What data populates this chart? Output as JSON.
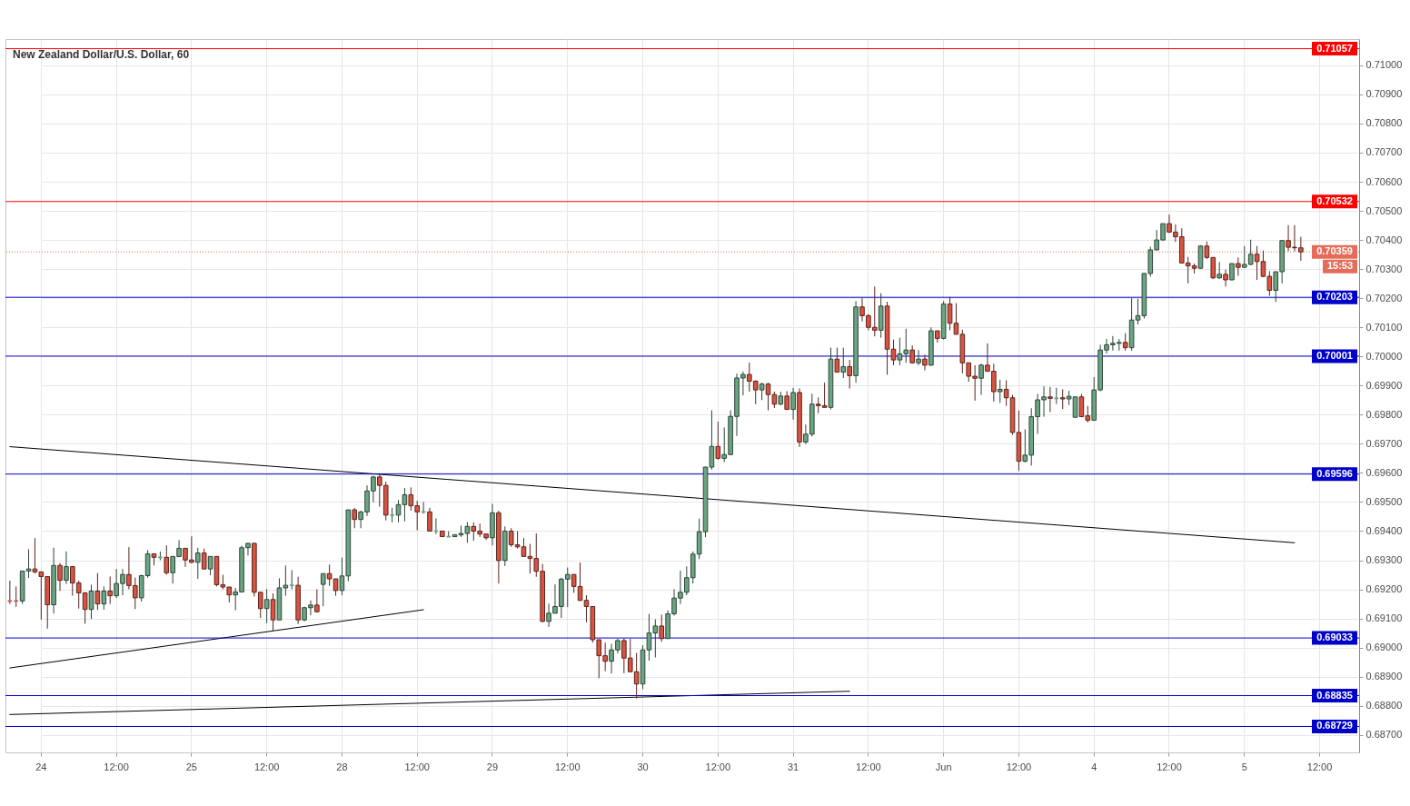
{
  "chart_data": {
    "type": "candlestick",
    "title": "New Zealand Dollar/U.S. Dollar, 60",
    "categories": [
      null,
      null,
      null,
      null,
      null,
      "24",
      null,
      null,
      null,
      null,
      null,
      null,
      null,
      null,
      null,
      null,
      null,
      "12:00",
      null,
      null,
      null,
      null,
      null,
      null,
      null,
      null,
      null,
      null,
      null,
      "25",
      null,
      null,
      null,
      null,
      null,
      null,
      null,
      null,
      null,
      null,
      null,
      "12:00",
      null,
      null,
      null,
      null,
      null,
      null,
      null,
      null,
      null,
      null,
      null,
      "28",
      null,
      null,
      null,
      null,
      null,
      null,
      null,
      null,
      null,
      null,
      null,
      "12:00",
      null,
      null,
      null,
      null,
      null,
      null,
      null,
      null,
      null,
      null,
      null,
      "29",
      null,
      null,
      null,
      null,
      null,
      null,
      null,
      null,
      null,
      null,
      null,
      "12:00",
      null,
      null,
      null,
      null,
      null,
      null,
      null,
      null,
      null,
      null,
      null,
      "30",
      null,
      null,
      null,
      null,
      null,
      null,
      null,
      null,
      null,
      null,
      null,
      "12:00",
      null,
      null,
      null,
      null,
      null,
      null,
      null,
      null,
      null,
      null,
      null,
      "31",
      null,
      null,
      null,
      null,
      null,
      null,
      null,
      null,
      null,
      null,
      null,
      "12:00",
      null,
      null,
      null,
      null,
      null,
      null,
      null,
      null,
      null,
      null,
      null,
      "Jun",
      null,
      null,
      null,
      null,
      null,
      null,
      null,
      null,
      null,
      null,
      null,
      "12:00",
      null,
      null,
      null,
      null,
      null,
      null,
      null,
      null,
      null,
      null,
      null,
      "4",
      null,
      null,
      null,
      null,
      null,
      null,
      null,
      null,
      null,
      null,
      null,
      "12:00",
      null,
      null,
      null,
      null,
      null,
      null,
      null,
      null,
      null,
      null,
      null,
      "5",
      null,
      null,
      null,
      null,
      null,
      null,
      null,
      null,
      null,
      null,
      null,
      "12:00"
    ],
    "ohlc": [
      [
        0.6916,
        0.6923,
        0.6915,
        0.6916
      ],
      [
        0.6916,
        0.6921,
        0.6914,
        0.6916
      ],
      [
        0.6916,
        0.69263,
        0.6915,
        0.69263
      ],
      [
        0.69263,
        0.69338,
        0.69239,
        0.6927
      ],
      [
        0.6927,
        0.69376,
        0.69254,
        0.6926
      ],
      [
        0.6926,
        0.6926,
        0.69096,
        0.69244
      ],
      [
        0.69244,
        0.69244,
        0.69065,
        0.69147
      ],
      [
        0.69147,
        0.69343,
        0.69117,
        0.69282
      ],
      [
        0.69282,
        0.6929,
        0.69195,
        0.69231
      ],
      [
        0.69231,
        0.6933,
        0.69218,
        0.69278
      ],
      [
        0.69278,
        0.6928,
        0.69178,
        0.69222
      ],
      [
        0.69222,
        0.6923,
        0.69134,
        0.69188
      ],
      [
        0.69188,
        0.6919,
        0.69082,
        0.69131
      ],
      [
        0.69131,
        0.69216,
        0.69098,
        0.69194
      ],
      [
        0.69194,
        0.69256,
        0.69129,
        0.6915
      ],
      [
        0.6915,
        0.6921,
        0.6913,
        0.69194
      ],
      [
        0.69194,
        0.69244,
        0.6915,
        0.69178
      ],
      [
        0.69178,
        0.6927,
        0.6917,
        0.6922
      ],
      [
        0.6922,
        0.6927,
        0.6918,
        0.69251
      ],
      [
        0.69251,
        0.69345,
        0.692,
        0.69213
      ],
      [
        0.69213,
        0.6924,
        0.69132,
        0.69171
      ],
      [
        0.69171,
        0.6925,
        0.69158,
        0.69247
      ],
      [
        0.69247,
        0.69335,
        0.6924,
        0.69322
      ],
      [
        0.69322,
        0.69322,
        0.69282,
        0.6931
      ],
      [
        0.6931,
        0.6933,
        0.693,
        0.6931
      ],
      [
        0.6931,
        0.69351,
        0.6925,
        0.69257
      ],
      [
        0.69257,
        0.69313,
        0.6922,
        0.69313
      ],
      [
        0.69313,
        0.69369,
        0.6931,
        0.69341
      ],
      [
        0.69341,
        0.69341,
        0.69277,
        0.69301
      ],
      [
        0.69301,
        0.69382,
        0.6929,
        0.69293
      ],
      [
        0.69293,
        0.69343,
        0.69236,
        0.69325
      ],
      [
        0.69325,
        0.6934,
        0.6927,
        0.6927
      ],
      [
        0.6927,
        0.69313,
        0.69249,
        0.69313
      ],
      [
        0.69313,
        0.69313,
        0.6921,
        0.69216
      ],
      [
        0.69216,
        0.6925,
        0.692,
        0.69208
      ],
      [
        0.69208,
        0.69208,
        0.69155,
        0.69181
      ],
      [
        0.69181,
        0.69205,
        0.69128,
        0.69191
      ],
      [
        0.69191,
        0.6935,
        0.6919,
        0.69343
      ],
      [
        0.69343,
        0.6936,
        0.69316,
        0.69358
      ],
      [
        0.69358,
        0.6936,
        0.69175,
        0.6919
      ],
      [
        0.6919,
        0.6919,
        0.69102,
        0.69134
      ],
      [
        0.69134,
        0.69201,
        0.69084,
        0.69165
      ],
      [
        0.69165,
        0.69186,
        0.69057,
        0.69095
      ],
      [
        0.69095,
        0.69238,
        0.69095,
        0.69205
      ],
      [
        0.69205,
        0.69282,
        0.69178,
        0.69214
      ],
      [
        0.69214,
        0.69266,
        0.692,
        0.69214
      ],
      [
        0.69214,
        0.69243,
        0.69081,
        0.69095
      ],
      [
        0.69095,
        0.6914,
        0.6909,
        0.69137
      ],
      [
        0.69137,
        0.69162,
        0.69111,
        0.69146
      ],
      [
        0.69146,
        0.692,
        0.6912,
        0.69123
      ],
      [
        0.69217,
        0.69254,
        0.69142,
        0.69254
      ],
      [
        0.69254,
        0.69285,
        0.69212,
        0.69236
      ],
      [
        0.69236,
        0.69236,
        0.69178,
        0.69196
      ],
      [
        0.69196,
        0.69309,
        0.6918,
        0.69246
      ],
      [
        0.69246,
        0.69473,
        0.69228,
        0.69473
      ],
      [
        0.69473,
        0.6948,
        0.6941,
        0.6944
      ],
      [
        0.6944,
        0.6947,
        0.6941,
        0.69466
      ],
      [
        0.69466,
        0.69557,
        0.69452,
        0.69538
      ],
      [
        0.69538,
        0.6959,
        0.69499,
        0.69586
      ],
      [
        0.69586,
        0.69595,
        0.69484,
        0.69557
      ],
      [
        0.69557,
        0.6957,
        0.69437,
        0.69455
      ],
      [
        0.69455,
        0.6948,
        0.6943,
        0.69455
      ],
      [
        0.69455,
        0.69507,
        0.6943,
        0.69491
      ],
      [
        0.69491,
        0.69548,
        0.69433,
        0.69525
      ],
      [
        0.69525,
        0.6955,
        0.6947,
        0.69487
      ],
      [
        0.69487,
        0.69504,
        0.69403,
        0.69466
      ],
      [
        0.69466,
        0.695,
        0.6946,
        0.69466
      ],
      [
        0.69466,
        0.6948,
        0.694,
        0.694
      ],
      [
        0.694,
        0.69444,
        0.6939,
        0.694
      ],
      [
        0.694,
        0.694,
        0.6938,
        0.69381
      ],
      [
        0.69381,
        0.694,
        0.6938,
        0.69381
      ],
      [
        0.69381,
        0.6939,
        0.6938,
        0.69387
      ],
      [
        0.69387,
        0.69419,
        0.6938,
        0.69392
      ],
      [
        0.69392,
        0.69431,
        0.6936,
        0.69416
      ],
      [
        0.69416,
        0.6943,
        0.69367,
        0.694
      ],
      [
        0.694,
        0.69426,
        0.6938,
        0.6939
      ],
      [
        0.6939,
        0.6939,
        0.6937,
        0.69377
      ],
      [
        0.69377,
        0.69494,
        0.69351,
        0.69463
      ],
      [
        0.69463,
        0.6947,
        0.6922,
        0.69299
      ],
      [
        0.69299,
        0.69416,
        0.6928,
        0.694
      ],
      [
        0.694,
        0.6941,
        0.69346,
        0.69353
      ],
      [
        0.69353,
        0.694,
        0.6934,
        0.69346
      ],
      [
        0.69346,
        0.69376,
        0.69313,
        0.69313
      ],
      [
        0.69313,
        0.69356,
        0.69254,
        0.69306
      ],
      [
        0.69306,
        0.69392,
        0.69243,
        0.69262
      ],
      [
        0.69262,
        0.69287,
        0.69087,
        0.6909
      ],
      [
        0.6909,
        0.69151,
        0.69071,
        0.69118
      ],
      [
        0.69118,
        0.69217,
        0.69118,
        0.69141
      ],
      [
        0.69141,
        0.6924,
        0.69102,
        0.69235
      ],
      [
        0.69235,
        0.69275,
        0.69139,
        0.69251
      ],
      [
        0.69251,
        0.69251,
        0.69188,
        0.6921
      ],
      [
        0.6921,
        0.69292,
        0.6916,
        0.69162
      ],
      [
        0.69162,
        0.6918,
        0.69087,
        0.69141
      ],
      [
        0.69141,
        0.69141,
        0.69017,
        0.69027
      ],
      [
        0.69027,
        0.69027,
        0.68895,
        0.68972
      ],
      [
        0.68972,
        0.69017,
        0.68919,
        0.68953
      ],
      [
        0.68953,
        0.69013,
        0.68911,
        0.68992
      ],
      [
        0.68992,
        0.6903,
        0.6898,
        0.69024
      ],
      [
        0.69024,
        0.69032,
        0.68912,
        0.68964
      ],
      [
        0.68964,
        0.6903,
        0.68917,
        0.68917
      ],
      [
        0.68917,
        0.68982,
        0.68825,
        0.68875
      ],
      [
        0.68875,
        0.69008,
        0.68857,
        0.68992
      ],
      [
        0.68992,
        0.69116,
        0.68955,
        0.6905
      ],
      [
        0.6905,
        0.69097,
        0.68966,
        0.69074
      ],
      [
        0.69074,
        0.69113,
        0.6902,
        0.69031
      ],
      [
        0.69031,
        0.69128,
        0.6903,
        0.69116
      ],
      [
        0.69116,
        0.692,
        0.6911,
        0.6917
      ],
      [
        0.6917,
        0.69264,
        0.6915,
        0.6919
      ],
      [
        0.6919,
        0.69279,
        0.6918,
        0.6924
      ],
      [
        0.6924,
        0.6933,
        0.6922,
        0.69321
      ],
      [
        0.69321,
        0.69443,
        0.69304,
        0.69398
      ],
      [
        0.69398,
        0.6962,
        0.69379,
        0.6962
      ],
      [
        0.6962,
        0.69815,
        0.69611,
        0.69691
      ],
      [
        0.69691,
        0.69776,
        0.69645,
        0.6965
      ],
      [
        0.6965,
        0.69756,
        0.69637,
        0.69663
      ],
      [
        0.69663,
        0.69815,
        0.69661,
        0.69794
      ],
      [
        0.69794,
        0.69941,
        0.69727,
        0.69926
      ],
      [
        0.69926,
        0.69948,
        0.69866,
        0.69938
      ],
      [
        0.69938,
        0.69979,
        0.69879,
        0.69915
      ],
      [
        0.69915,
        0.69918,
        0.69836,
        0.69885
      ],
      [
        0.69885,
        0.6991,
        0.6985,
        0.69905
      ],
      [
        0.69905,
        0.6991,
        0.69815,
        0.69869
      ],
      [
        0.69869,
        0.69879,
        0.69823,
        0.69836
      ],
      [
        0.69836,
        0.69879,
        0.69833,
        0.69864
      ],
      [
        0.69864,
        0.69881,
        0.69818,
        0.69818
      ],
      [
        0.69818,
        0.69892,
        0.69783,
        0.69876
      ],
      [
        0.69876,
        0.6989,
        0.69689,
        0.69706
      ],
      [
        0.69706,
        0.69766,
        0.69699,
        0.69733
      ],
      [
        0.69733,
        0.69872,
        0.69725,
        0.69836
      ],
      [
        0.69836,
        0.69859,
        0.69805,
        0.69831
      ],
      [
        0.69831,
        0.6991,
        0.69825,
        0.69825
      ],
      [
        0.69825,
        0.7003,
        0.69818,
        0.69991
      ],
      [
        0.69991,
        0.7003,
        0.69946,
        0.69946
      ],
      [
        0.69946,
        0.7003,
        0.69926,
        0.69965
      ],
      [
        0.69965,
        0.69988,
        0.6989,
        0.69934
      ],
      [
        0.69934,
        0.7019,
        0.6991,
        0.7017
      ],
      [
        0.7017,
        0.702,
        0.7012,
        0.7014
      ],
      [
        0.7014,
        0.70145,
        0.7009,
        0.701
      ],
      [
        0.701,
        0.7024,
        0.70069,
        0.7009
      ],
      [
        0.7009,
        0.70217,
        0.70064,
        0.70173
      ],
      [
        0.70173,
        0.70188,
        0.69937,
        0.70025
      ],
      [
        0.70025,
        0.70058,
        0.6997,
        0.69988
      ],
      [
        0.69988,
        0.70064,
        0.6997,
        0.70009
      ],
      [
        0.70009,
        0.70095,
        0.69978,
        0.70022
      ],
      [
        0.70022,
        0.70038,
        0.69975,
        0.69978
      ],
      [
        0.69978,
        0.70022,
        0.6997,
        0.69991
      ],
      [
        0.69991,
        0.70006,
        0.69952,
        0.6997
      ],
      [
        0.6997,
        0.701,
        0.69968,
        0.70088
      ],
      [
        0.70088,
        0.70088,
        0.70048,
        0.70062
      ],
      [
        0.70062,
        0.7019,
        0.70058,
        0.7018
      ],
      [
        0.7018,
        0.70204,
        0.7009,
        0.70114
      ],
      [
        0.70114,
        0.70183,
        0.70076,
        0.70076
      ],
      [
        0.70076,
        0.70092,
        0.69942,
        0.69978
      ],
      [
        0.69978,
        0.69978,
        0.69913,
        0.69932
      ],
      [
        0.69932,
        0.6997,
        0.69848,
        0.69925
      ],
      [
        0.69925,
        0.69975,
        0.69868,
        0.6997
      ],
      [
        0.6997,
        0.70045,
        0.69949,
        0.69949
      ],
      [
        0.69949,
        0.69975,
        0.69845,
        0.69879
      ],
      [
        0.69879,
        0.6992,
        0.6984,
        0.69887
      ],
      [
        0.69887,
        0.69918,
        0.6983,
        0.69858
      ],
      [
        0.69858,
        0.69868,
        0.69731,
        0.69739
      ],
      [
        0.69739,
        0.69814,
        0.69607,
        0.6964
      ],
      [
        0.6964,
        0.6975,
        0.69636,
        0.69661
      ],
      [
        0.69661,
        0.69822,
        0.69625,
        0.69793
      ],
      [
        0.69793,
        0.69871,
        0.69734,
        0.69851
      ],
      [
        0.69851,
        0.69897,
        0.69793,
        0.69861
      ],
      [
        0.69861,
        0.69895,
        0.69809,
        0.69856
      ],
      [
        0.69856,
        0.69892,
        0.69837,
        0.69856
      ],
      [
        0.69858,
        0.69887,
        0.69819,
        0.69854
      ],
      [
        0.69854,
        0.69882,
        0.69833,
        0.69863
      ],
      [
        0.69791,
        0.69861,
        0.69791,
        0.69861
      ],
      [
        0.69861,
        0.69871,
        0.69793,
        0.69793
      ],
      [
        0.69796,
        0.6983,
        0.69773,
        0.69781
      ],
      [
        0.69781,
        0.69929,
        0.69781,
        0.69885
      ],
      [
        0.69885,
        0.7004,
        0.6988,
        0.70022
      ],
      [
        0.70022,
        0.7006,
        0.7001,
        0.7004
      ],
      [
        0.7004,
        0.7007,
        0.7002,
        0.70045
      ],
      [
        0.70045,
        0.7006,
        0.7002,
        0.70048
      ],
      [
        0.70048,
        0.7008,
        0.7002,
        0.7003
      ],
      [
        0.7003,
        0.702,
        0.7002,
        0.70125
      ],
      [
        0.70125,
        0.70198,
        0.7011,
        0.7014
      ],
      [
        0.7014,
        0.70285,
        0.7013,
        0.70285
      ],
      [
        0.70285,
        0.70377,
        0.70274,
        0.70366
      ],
      [
        0.70366,
        0.70435,
        0.70364,
        0.704
      ],
      [
        0.704,
        0.70456,
        0.70398,
        0.70456
      ],
      [
        0.70456,
        0.70487,
        0.70424,
        0.70427
      ],
      [
        0.70427,
        0.70453,
        0.70393,
        0.70411
      ],
      [
        0.70411,
        0.7044,
        0.70319,
        0.70321
      ],
      [
        0.70321,
        0.70342,
        0.70251,
        0.70311
      ],
      [
        0.70311,
        0.70319,
        0.70285,
        0.70303
      ],
      [
        0.70303,
        0.70382,
        0.70301,
        0.70379
      ],
      [
        0.70379,
        0.70395,
        0.70335,
        0.7034
      ],
      [
        0.7034,
        0.7034,
        0.70266,
        0.7027
      ],
      [
        0.7027,
        0.70324,
        0.70266,
        0.70282
      ],
      [
        0.70282,
        0.70298,
        0.7024,
        0.70263
      ],
      [
        0.70263,
        0.70319,
        0.70261,
        0.70319
      ],
      [
        0.70319,
        0.7034,
        0.70277,
        0.70306
      ],
      [
        0.70306,
        0.70379,
        0.70305,
        0.70316
      ],
      [
        0.70316,
        0.70401,
        0.70314,
        0.70351
      ],
      [
        0.70351,
        0.70379,
        0.70263,
        0.70326
      ],
      [
        0.70326,
        0.70364,
        0.70272,
        0.70275
      ],
      [
        0.70275,
        0.70293,
        0.70208,
        0.70227
      ],
      [
        0.70227,
        0.70291,
        0.70187,
        0.70291
      ],
      [
        0.70291,
        0.70398,
        0.70251,
        0.70398
      ],
      [
        0.70398,
        0.70451,
        0.70361,
        0.70375
      ],
      [
        0.70375,
        0.70451,
        0.70361,
        0.70373
      ],
      [
        0.70373,
        0.70411,
        0.70329,
        0.70359
      ],
      null,
      null,
      null
    ],
    "colors": [
      "#d75442",
      "#d75442",
      "#6ba583",
      "#6ba583",
      "#d75442",
      "#d75442",
      "#d75442",
      "#6ba583",
      "#d75442",
      "#6ba583",
      "#d75442",
      "#d75442",
      "#d75442",
      "#6ba583",
      "#d75442",
      "#6ba583",
      "#d75442",
      "#6ba583",
      "#6ba583",
      "#d75442",
      "#d75442",
      "#6ba583",
      "#6ba583",
      "#d75442",
      "#6ba583",
      "#d75442",
      "#6ba583",
      "#6ba583",
      "#d75442",
      "#d75442",
      "#6ba583",
      "#d75442",
      "#6ba583",
      "#d75442",
      "#d75442",
      "#d75442",
      "#6ba583",
      "#6ba583",
      "#6ba583",
      "#d75442",
      "#d75442",
      "#6ba583",
      "#d75442",
      "#6ba583",
      "#6ba583",
      "#6ba583",
      "#d75442",
      "#6ba583",
      "#6ba583",
      "#d75442",
      "#6ba583",
      "#d75442",
      "#d75442",
      "#6ba583",
      "#6ba583",
      "#d75442",
      "#6ba583",
      "#6ba583",
      "#6ba583",
      "#d75442",
      "#d75442",
      "#6ba583",
      "#6ba583",
      "#6ba583",
      "#d75442",
      "#d75442",
      "#6ba583",
      "#d75442",
      "#6ba583",
      "#d75442",
      "#6ba583",
      "#6ba583",
      "#6ba583",
      "#6ba583",
      "#d75442",
      "#d75442",
      "#d75442",
      "#6ba583",
      "#d75442",
      "#6ba583",
      "#d75442",
      "#d75442",
      "#d75442",
      "#d75442",
      "#d75442",
      "#d75442",
      "#6ba583",
      "#6ba583",
      "#6ba583",
      "#6ba583",
      "#d75442",
      "#d75442",
      "#d75442",
      "#d75442",
      "#d75442",
      "#d75442",
      "#6ba583",
      "#6ba583",
      "#d75442",
      "#d75442",
      "#d75442",
      "#6ba583",
      "#6ba583",
      "#6ba583",
      "#d75442",
      "#6ba583",
      "#6ba583",
      "#6ba583",
      "#6ba583",
      "#6ba583",
      "#6ba583",
      "#6ba583",
      "#6ba583",
      "#d75442",
      "#6ba583",
      "#6ba583",
      "#6ba583",
      "#6ba583",
      "#d75442",
      "#d75442",
      "#6ba583",
      "#d75442",
      "#d75442",
      "#6ba583",
      "#d75442",
      "#6ba583",
      "#d75442",
      "#6ba583",
      "#6ba583",
      "#d75442",
      "#d75442",
      "#6ba583",
      "#d75442",
      "#6ba583",
      "#d75442",
      "#6ba583",
      "#d75442",
      "#d75442",
      "#d75442",
      "#6ba583",
      "#d75442",
      "#d75442",
      "#6ba583",
      "#6ba583",
      "#d75442",
      "#6ba583",
      "#d75442",
      "#6ba583",
      "#d75442",
      "#6ba583",
      "#d75442",
      "#d75442",
      "#d75442",
      "#d75442",
      "#d75442",
      "#6ba583",
      "#d75442",
      "#d75442",
      "#6ba583",
      "#d75442",
      "#d75442",
      "#d75442",
      "#6ba583",
      "#6ba583",
      "#6ba583",
      "#6ba583",
      "#d75442",
      "#6ba583",
      "#d75442",
      "#6ba583",
      "#6ba583",
      "#d75442",
      "#d75442",
      "#6ba583",
      "#6ba583",
      "#6ba583",
      "#6ba583",
      "#6ba583",
      "#d75442",
      "#6ba583",
      "#6ba583",
      "#6ba583",
      "#6ba583",
      "#6ba583",
      "#6ba583",
      "#d75442",
      "#d75442",
      "#d75442",
      "#d75442",
      "#d75442",
      "#6ba583",
      "#d75442",
      "#d75442",
      "#6ba583",
      "#d75442",
      "#6ba583",
      "#d75442",
      "#6ba583",
      "#6ba583",
      "#d75442",
      "#d75442",
      "#d75442",
      "#6ba583",
      "#6ba583",
      "#d75442",
      "#d75442",
      "#d75442",
      null,
      null,
      null
    ],
    "series": [
      {
        "type": "line",
        "color": "#000000",
        "values": [
          0.6969,
          null,
          null,
          null,
          null,
          null,
          null,
          null,
          null,
          null,
          null,
          null,
          null,
          null,
          null,
          null,
          null,
          null,
          null,
          null,
          null,
          null,
          null,
          null,
          null,
          null,
          null,
          null,
          null,
          null,
          null,
          null,
          null,
          null,
          null,
          null,
          null,
          null,
          null,
          null,
          null,
          null,
          null,
          null,
          null,
          null,
          null,
          null,
          null,
          null,
          null,
          null,
          null,
          null,
          null,
          null,
          null,
          null,
          null,
          null,
          null,
          null,
          null,
          null,
          null,
          null,
          null,
          null,
          null,
          null,
          null,
          null,
          null,
          null,
          null,
          null,
          null,
          null,
          null,
          null,
          null,
          null,
          null,
          null,
          null,
          null,
          null,
          null,
          null,
          null,
          null,
          null,
          null,
          null,
          null,
          null,
          null,
          null,
          null,
          null,
          null,
          null,
          null,
          null,
          null,
          null,
          null,
          null,
          null,
          null,
          null,
          null,
          null,
          null,
          null,
          null,
          null,
          null,
          null,
          null,
          null,
          null,
          null,
          null,
          null,
          null,
          null,
          null,
          null,
          null,
          null,
          null,
          null,
          null,
          null,
          null,
          null,
          null,
          null,
          null,
          null,
          null,
          null,
          null,
          null,
          null,
          null,
          null,
          null,
          null,
          null,
          null,
          null,
          null,
          null,
          null,
          null,
          null,
          null,
          null,
          null,
          null,
          null,
          null,
          null,
          null,
          null,
          null,
          null,
          null,
          null,
          null,
          null,
          null,
          null,
          null,
          null,
          null,
          null,
          null,
          null,
          null,
          null,
          null,
          null,
          null,
          null,
          null,
          null,
          null,
          null,
          null,
          null,
          null,
          null,
          null,
          null,
          null,
          null,
          null,
          null,
          null,
          null,
          null,
          null,
          0.6936,
          null,
          null,
          null,
          null
        ]
      },
      {
        "type": "line",
        "color": "#000000",
        "values": [
          0.6893,
          null,
          null,
          null,
          null,
          null,
          null,
          null,
          null,
          null,
          null,
          null,
          null,
          null,
          null,
          null,
          null,
          null,
          null,
          null,
          null,
          null,
          null,
          null,
          null,
          null,
          null,
          null,
          null,
          null,
          null,
          null,
          null,
          null,
          null,
          null,
          null,
          null,
          null,
          null,
          null,
          null,
          null,
          null,
          null,
          null,
          null,
          null,
          null,
          null,
          null,
          null,
          null,
          null,
          null,
          null,
          null,
          null,
          null,
          null,
          null,
          null,
          null,
          null,
          null,
          null,
          0.6913,
          null,
          null,
          null,
          null,
          null,
          null,
          null,
          null,
          null,
          null,
          null,
          null,
          null,
          null,
          null,
          null,
          null,
          null,
          null,
          null,
          null,
          null,
          null,
          null,
          null,
          null,
          null,
          null,
          null,
          null,
          null,
          null,
          null,
          null,
          null,
          null,
          null,
          null,
          null,
          null,
          null,
          null,
          null,
          null,
          null,
          null,
          null,
          null,
          null,
          null,
          null,
          null,
          null,
          null,
          null,
          null,
          null,
          null,
          null,
          null,
          null,
          null,
          null,
          null,
          null,
          null,
          null,
          null,
          null,
          null,
          null,
          null,
          null,
          null,
          null,
          null,
          null,
          null,
          null,
          null,
          null,
          null,
          null,
          null,
          null,
          null,
          null,
          null,
          null,
          null,
          null,
          null,
          null,
          null,
          null,
          null,
          null,
          null,
          null,
          null,
          null,
          null,
          null,
          null,
          null,
          null,
          null,
          null,
          null,
          null,
          null,
          null,
          null,
          null,
          null,
          null,
          null,
          null,
          null,
          null,
          null,
          null,
          null,
          null,
          null,
          null,
          null,
          null,
          null,
          null,
          null,
          null,
          null,
          null,
          null,
          null,
          null,
          null,
          null,
          null,
          null,
          null,
          null
        ]
      },
      {
        "type": "line",
        "color": "#000000",
        "values": [
          0.6877,
          null,
          null,
          null,
          null,
          null,
          null,
          null,
          null,
          null,
          null,
          null,
          null,
          null,
          null,
          null,
          null,
          null,
          null,
          null,
          null,
          null,
          null,
          null,
          null,
          null,
          null,
          null,
          null,
          null,
          null,
          null,
          null,
          null,
          null,
          null,
          null,
          null,
          null,
          null,
          null,
          null,
          null,
          null,
          null,
          null,
          null,
          null,
          null,
          null,
          null,
          null,
          null,
          null,
          null,
          null,
          null,
          null,
          null,
          null,
          null,
          null,
          null,
          null,
          null,
          null,
          null,
          null,
          null,
          null,
          null,
          null,
          null,
          null,
          null,
          null,
          null,
          null,
          null,
          null,
          null,
          null,
          null,
          null,
          null,
          null,
          null,
          null,
          null,
          null,
          null,
          null,
          null,
          null,
          null,
          null,
          null,
          null,
          null,
          null,
          null,
          null,
          null,
          null,
          null,
          null,
          null,
          null,
          null,
          null,
          null,
          null,
          null,
          null,
          null,
          null,
          null,
          null,
          null,
          null,
          null,
          null,
          null,
          null,
          null,
          null,
          null,
          null,
          null,
          null,
          null,
          null,
          null,
          null,
          0.6885,
          null,
          null,
          null,
          null,
          null,
          null,
          null,
          null,
          null,
          null,
          null,
          null,
          null,
          null,
          null,
          null,
          null,
          null,
          null,
          null,
          null,
          null,
          null,
          null,
          null,
          null,
          null,
          null,
          null,
          null,
          null,
          null,
          null,
          null,
          null,
          null,
          null,
          null,
          null,
          null,
          null,
          null,
          null,
          null,
          null,
          null,
          null,
          null,
          null,
          null,
          null,
          null,
          null,
          null,
          null,
          null,
          null,
          null,
          null,
          null,
          null,
          null,
          null,
          null,
          null,
          null,
          null,
          null,
          null,
          null,
          null,
          null,
          null,
          null,
          null
        ]
      }
    ],
    "ylim": [
      0.6864,
      0.7109
    ],
    "yticks": [
      {
        "value": 0.687,
        "label": "0.68700"
      },
      {
        "value": 0.688,
        "label": "0.68800"
      },
      {
        "value": 0.689,
        "label": "0.68900"
      },
      {
        "value": 0.69,
        "label": "0.69000"
      },
      {
        "value": 0.691,
        "label": "0.69100"
      },
      {
        "value": 0.692,
        "label": "0.69200"
      },
      {
        "value": 0.693,
        "label": "0.69300"
      },
      {
        "value": 0.694,
        "label": "0.69400"
      },
      {
        "value": 0.695,
        "label": "0.69500"
      },
      {
        "value": 0.696,
        "label": "0.69600"
      },
      {
        "value": 0.697,
        "label": "0.69700"
      },
      {
        "value": 0.698,
        "label": "0.69800"
      },
      {
        "value": 0.699,
        "label": "0.69900"
      },
      {
        "value": 0.7,
        "label": "0.70000"
      },
      {
        "value": 0.701,
        "label": "0.70100"
      },
      {
        "value": 0.702,
        "label": "0.70200"
      },
      {
        "value": 0.703,
        "label": "0.70300"
      },
      {
        "value": 0.704,
        "label": "0.70400"
      },
      {
        "value": 0.705,
        "label": "0.70500"
      },
      {
        "value": 0.706,
        "label": "0.70600"
      },
      {
        "value": 0.707,
        "label": "0.70700"
      },
      {
        "value": 0.708,
        "label": "0.70800"
      },
      {
        "value": 0.709,
        "label": "0.70900"
      },
      {
        "value": 0.71,
        "label": "0.71000"
      }
    ],
    "grid": true,
    "ref_lines": [
      {
        "axis": "y",
        "value": 0.71057,
        "label": "0.71057",
        "color": "#ff0000"
      },
      {
        "axis": "y",
        "value": 0.70532,
        "label": "0.70532",
        "color": "#ff0000"
      },
      {
        "axis": "y",
        "value": 0.70359,
        "label": "0.70359",
        "color": "#e66c5a",
        "line_style": "dotted"
      },
      {
        "axis": "y",
        "value": 0.70203,
        "label": "0.70203",
        "color": "#0000c8"
      },
      {
        "axis": "y",
        "value": 0.70001,
        "label": "0.70001",
        "color": "#0000c8"
      },
      {
        "axis": "y",
        "value": 0.69596,
        "label": "0.69596",
        "color": "#0000c8"
      },
      {
        "axis": "y",
        "value": 0.69033,
        "label": "0.69033",
        "color": "#0000c8"
      },
      {
        "axis": "y",
        "value": 0.68835,
        "label": "0.68835",
        "color": "#0000c8"
      },
      {
        "axis": "y",
        "value": 0.68729,
        "label": "0.68729",
        "color": "#0000c8"
      }
    ],
    "annotations": [
      "15:53"
    ]
  }
}
